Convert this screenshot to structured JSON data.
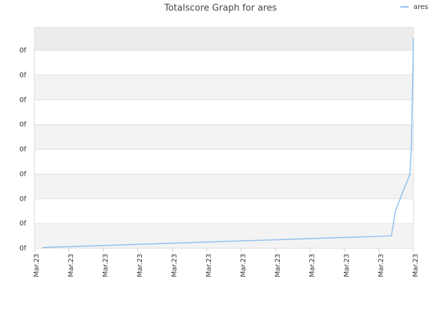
{
  "chart_data": {
    "type": "line",
    "title": "Totalscore Graph for ares",
    "x": [
      0.24,
      5,
      10.36,
      10.48,
      10.9,
      10.94,
      10.96,
      10.98,
      11
    ],
    "series": [
      {
        "name": "ares",
        "color": "#8fbfee",
        "values": [
          0.03,
          0.25,
          0.5,
          1.53,
          3.0,
          4.1,
          5.55,
          7.0,
          8.5
        ]
      }
    ],
    "xlim": [
      0,
      11
    ],
    "xticks": [
      {
        "value": 0,
        "label": "Mar.23"
      },
      {
        "value": 1,
        "label": "Mar.23"
      },
      {
        "value": 2,
        "label": "Mar.23"
      },
      {
        "value": 3,
        "label": "Mar.23"
      },
      {
        "value": 4,
        "label": "Mar.23"
      },
      {
        "value": 5,
        "label": "Mar.23"
      },
      {
        "value": 6,
        "label": "Mar.23"
      },
      {
        "value": 7,
        "label": "Mar.23"
      },
      {
        "value": 8,
        "label": "Mar.23"
      },
      {
        "value": 9,
        "label": "Mar.23"
      },
      {
        "value": 10,
        "label": "Mar.23"
      },
      {
        "value": 11,
        "label": "Mar.23"
      }
    ],
    "ylim": [
      0,
      8.92
    ],
    "yticks": [
      {
        "value": 0,
        "label": "0f"
      },
      {
        "value": 1,
        "label": "0f"
      },
      {
        "value": 2,
        "label": "0f"
      },
      {
        "value": 3,
        "label": "0f"
      },
      {
        "value": 4,
        "label": "0f"
      },
      {
        "value": 5,
        "label": "0f"
      },
      {
        "value": 6,
        "label": "0f"
      },
      {
        "value": 7,
        "label": "0f"
      },
      {
        "value": 8,
        "label": "0f"
      }
    ],
    "grid": true,
    "legend": "top-right"
  }
}
